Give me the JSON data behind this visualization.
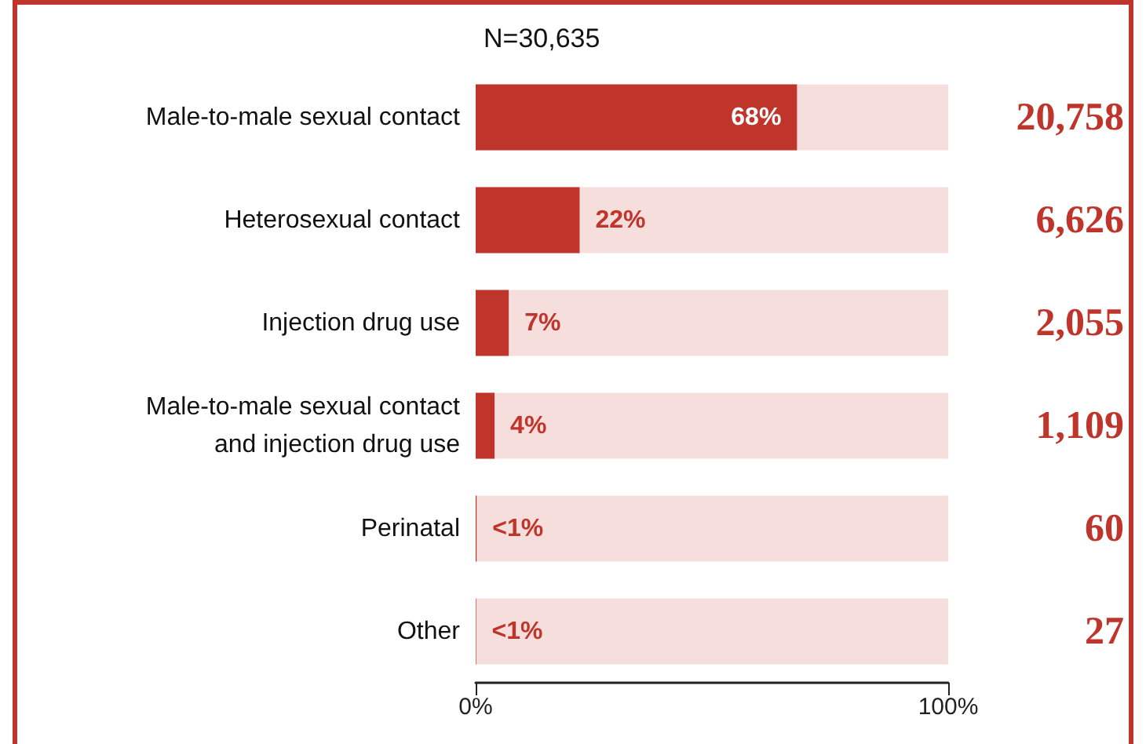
{
  "chart_data": {
    "type": "bar",
    "orientation": "horizontal",
    "title": "N=30,635",
    "categories": [
      "Male-to-male sexual contact",
      "Heterosexual contact",
      "Injection drug use",
      "Male-to-male sexual contact\nand injection drug use",
      "Perinatal",
      "Other"
    ],
    "values": [
      68,
      22,
      7,
      4,
      0.2,
      0.1
    ],
    "value_labels": [
      "68%",
      "22%",
      "7%",
      "4%",
      "<1%",
      "<1%"
    ],
    "color": "#c0352b",
    "xlim": [
      0,
      100
    ],
    "xticks": [
      {
        "value": 0,
        "label": "0%"
      },
      {
        "value": 100,
        "label": "100%"
      }
    ],
    "grid": false,
    "annotations": [
      "20,758",
      "6,626",
      "2,055",
      "1,109",
      "60",
      "27"
    ]
  }
}
